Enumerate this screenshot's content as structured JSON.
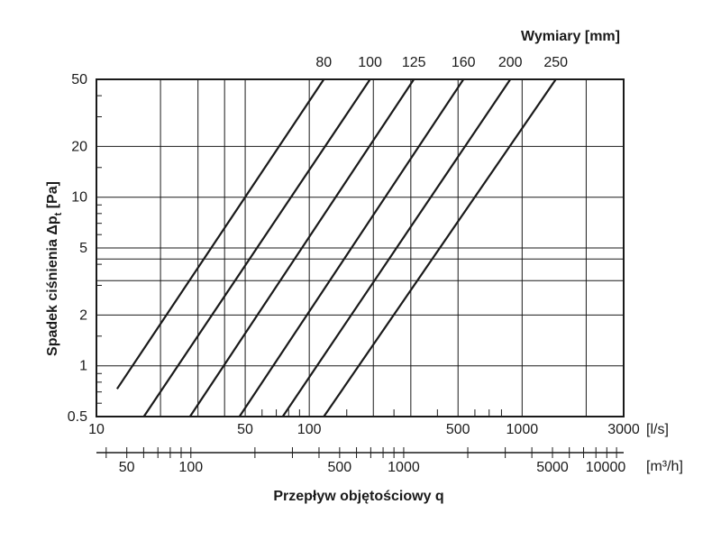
{
  "chart_data": {
    "type": "line",
    "title": "",
    "top_label": "Wymiary [mm]",
    "ylabel": "Spadek ciśnienia Δp",
    "ylabel_sub": "t",
    "ylabel_unit": " [Pa]",
    "xlabel": "Przepływ objętościowy q",
    "x_scale": "log",
    "y_scale": "log",
    "xlim": [
      10,
      3000
    ],
    "ylim": [
      0.5,
      50
    ],
    "x_unit": "[l/s]",
    "x_ticks": [
      10,
      50,
      100,
      500,
      1000,
      3000
    ],
    "x2_unit": "[m³/h]",
    "x2_ticks": [
      50,
      100,
      500,
      1000,
      5000,
      10000
    ],
    "y_ticks": [
      0.5,
      1,
      2,
      5,
      10,
      20,
      50
    ],
    "series": [
      {
        "name": "80",
        "x": [
          12.5,
          117
        ],
        "y": [
          0.73,
          50
        ]
      },
      {
        "name": "100",
        "x": [
          16.7,
          193
        ],
        "y": [
          0.5,
          50
        ]
      },
      {
        "name": "125",
        "x": [
          27.5,
          310
        ],
        "y": [
          0.5,
          50
        ]
      },
      {
        "name": "160",
        "x": [
          47,
          530
        ],
        "y": [
          0.5,
          50
        ]
      },
      {
        "name": "200",
        "x": [
          75,
          880
        ],
        "y": [
          0.5,
          50
        ]
      },
      {
        "name": "250",
        "x": [
          117,
          1440
        ],
        "y": [
          0.5,
          50
        ]
      }
    ],
    "grid": true
  }
}
